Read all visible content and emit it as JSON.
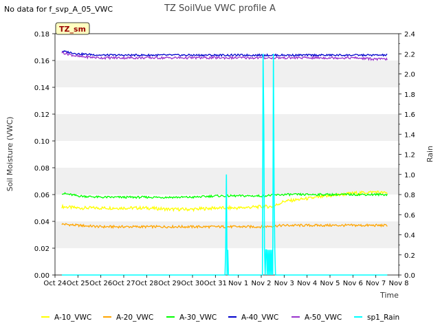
{
  "nodata_text": "No data for f_svp_A_05_VWC",
  "site_badge": "TZ_sm",
  "chart_data": {
    "type": "line",
    "title": "TZ SoilVue VWC profile A",
    "xlabel": "Time",
    "ylabel": "Soil Moisture (VWC)",
    "y2label": "Rain",
    "x_ticks": [
      "Oct 24",
      "Oct 25",
      "Oct 26",
      "Oct 27",
      "Oct 28",
      "Oct 29",
      "Oct 30",
      "Oct 31",
      "Nov 1",
      "Nov 2",
      "Nov 3",
      "Nov 4",
      "Nov 5",
      "Nov 6",
      "Nov 7",
      "Nov 8"
    ],
    "xlim_days": [
      0,
      15
    ],
    "ylim": [
      0,
      0.18
    ],
    "y_ticks": [
      "0.00",
      "0.02",
      "0.04",
      "0.06",
      "0.08",
      "0.10",
      "0.12",
      "0.14",
      "0.16",
      "0.18"
    ],
    "y2lim": [
      0,
      2.4
    ],
    "y2_ticks": [
      "0.0",
      "0.2",
      "0.4",
      "0.6",
      "0.8",
      "1.0",
      "1.2",
      "1.4",
      "1.6",
      "1.8",
      "2.0",
      "2.2",
      "2.4"
    ],
    "grid": "horizontal bands",
    "legend_placement": "bottom",
    "series": [
      {
        "name": "A-10_VWC",
        "color": "#ffff00",
        "axis": "left",
        "x": [
          0.3,
          1.0,
          2.0,
          3.0,
          4.0,
          5.0,
          6.0,
          7.0,
          8.0,
          9.0,
          9.5,
          10.0,
          10.5,
          11.0,
          12.0,
          13.0,
          14.0,
          14.5
        ],
        "y": [
          0.051,
          0.05,
          0.05,
          0.05,
          0.05,
          0.049,
          0.049,
          0.05,
          0.05,
          0.051,
          0.051,
          0.055,
          0.056,
          0.057,
          0.059,
          0.061,
          0.062,
          0.061
        ]
      },
      {
        "name": "A-20_VWC",
        "color": "#ffa500",
        "axis": "left",
        "x": [
          0.3,
          1.0,
          2.0,
          3.0,
          4.0,
          5.0,
          6.0,
          7.0,
          8.0,
          9.0,
          10.0,
          11.0,
          12.0,
          13.0,
          14.0,
          14.5
        ],
        "y": [
          0.038,
          0.037,
          0.036,
          0.036,
          0.036,
          0.036,
          0.036,
          0.036,
          0.036,
          0.036,
          0.037,
          0.037,
          0.037,
          0.037,
          0.037,
          0.037
        ]
      },
      {
        "name": "A-30_VWC",
        "color": "#00ff00",
        "axis": "left",
        "x": [
          0.3,
          1.0,
          2.0,
          3.0,
          4.0,
          5.0,
          6.0,
          7.0,
          8.0,
          9.0,
          10.0,
          11.0,
          12.0,
          13.0,
          14.0,
          14.5
        ],
        "y": [
          0.061,
          0.059,
          0.058,
          0.058,
          0.058,
          0.058,
          0.058,
          0.059,
          0.059,
          0.059,
          0.06,
          0.06,
          0.06,
          0.06,
          0.06,
          0.06
        ]
      },
      {
        "name": "A-40_VWC",
        "color": "#0000cc",
        "axis": "left",
        "x": [
          0.3,
          1.0,
          2.0,
          3.0,
          4.0,
          5.0,
          6.0,
          7.0,
          8.0,
          9.0,
          10.0,
          11.0,
          12.0,
          13.0,
          14.0,
          14.5
        ],
        "y": [
          0.167,
          0.165,
          0.164,
          0.164,
          0.164,
          0.164,
          0.164,
          0.164,
          0.164,
          0.164,
          0.164,
          0.164,
          0.164,
          0.164,
          0.164,
          0.164
        ]
      },
      {
        "name": "A-50_VWC",
        "color": "#9932cc",
        "axis": "left",
        "x": [
          0.3,
          1.0,
          2.0,
          3.0,
          4.0,
          5.0,
          6.0,
          7.0,
          8.0,
          9.0,
          10.0,
          11.0,
          12.0,
          13.0,
          14.0,
          14.5
        ],
        "y": [
          0.166,
          0.163,
          0.162,
          0.162,
          0.162,
          0.162,
          0.162,
          0.162,
          0.162,
          0.162,
          0.162,
          0.162,
          0.162,
          0.162,
          0.161,
          0.161
        ]
      },
      {
        "name": "sp1_Rain",
        "color": "#00ffff",
        "axis": "right",
        "x": [
          0.3,
          7.42,
          7.45,
          7.48,
          7.51,
          7.54,
          7.57,
          7.6,
          8.0,
          9.05,
          9.08,
          9.11,
          9.14,
          9.17,
          9.2,
          9.23,
          9.26,
          9.29,
          9.32,
          9.35,
          9.38,
          9.41,
          9.44,
          9.47,
          9.5,
          9.53,
          9.56,
          9.59,
          9.62,
          9.65,
          9.7,
          10.0,
          14.5
        ],
        "y": [
          0.0,
          0.0,
          0.25,
          1.0,
          0.0,
          0.25,
          0.0,
          0.0,
          0.0,
          0.0,
          2.2,
          1.5,
          0.25,
          0.0,
          0.25,
          0.25,
          0.0,
          0.25,
          0.0,
          0.25,
          0.0,
          0.25,
          0.0,
          0.25,
          0.0,
          2.2,
          0.8,
          0.25,
          0.0,
          0.0,
          0.0,
          0.0,
          0.0
        ]
      }
    ]
  }
}
